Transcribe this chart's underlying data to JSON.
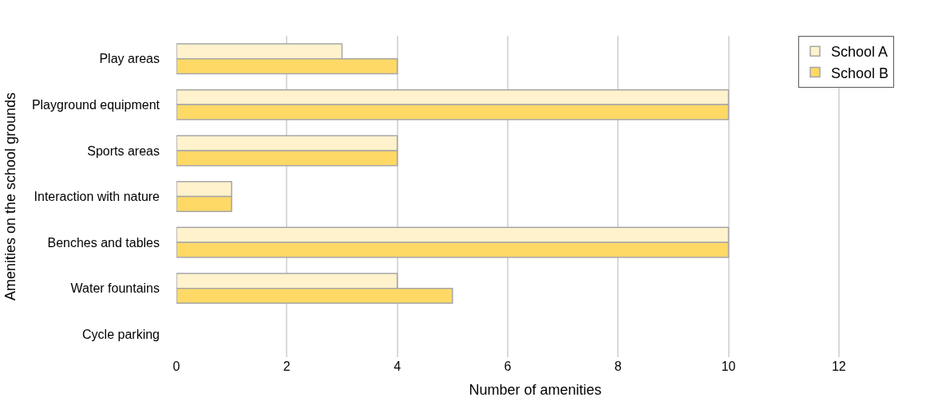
{
  "chart_data": {
    "type": "bar",
    "orientation": "horizontal",
    "xlabel": "Number of amenities",
    "ylabel": "Amenities on the school grounds",
    "categories": [
      "Play areas",
      "Playground equipment",
      "Sports areas",
      "Interaction with nature",
      "Benches and tables",
      "Water fountains",
      "Cycle parking"
    ],
    "series": [
      {
        "name": "School A",
        "color": "#fff2cc",
        "values": [
          3,
          10,
          4,
          1,
          10,
          4,
          0
        ]
      },
      {
        "name": "School B",
        "color": "#ffd966",
        "values": [
          4,
          10,
          4,
          1,
          10,
          5,
          0
        ]
      }
    ],
    "xlim": [
      0,
      13
    ],
    "xticks": [
      0,
      2,
      4,
      6,
      8,
      10,
      12
    ],
    "grid": "x",
    "legend": "top right"
  }
}
